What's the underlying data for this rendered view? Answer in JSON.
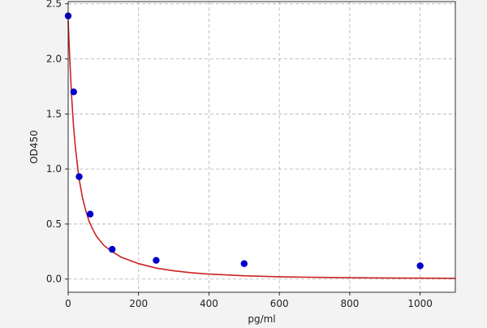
{
  "chart_data": {
    "type": "scatter",
    "title": "",
    "xlabel": "pg/ml",
    "ylabel": "OD450",
    "xlim": [
      0,
      1100
    ],
    "ylim": [
      -0.12,
      2.52
    ],
    "xticks": [
      0,
      200,
      400,
      600,
      800,
      1000
    ],
    "yticks": [
      0.0,
      0.5,
      1.0,
      1.5,
      2.0,
      2.5
    ],
    "xtick_labels": [
      "0",
      "200",
      "400",
      "600",
      "800",
      "1000"
    ],
    "ytick_labels": [
      "0.0",
      "0.5",
      "1.0",
      "1.5",
      "2.0",
      "2.5"
    ],
    "grid": true,
    "points": {
      "x": [
        0,
        15.6,
        31.2,
        62.5,
        125,
        250,
        500,
        1000
      ],
      "y": [
        2.39,
        1.7,
        0.93,
        0.59,
        0.27,
        0.17,
        0.14,
        0.12
      ],
      "color": "#0000cc"
    },
    "fit_curve": {
      "x": [
        0,
        5,
        10,
        15,
        20,
        30,
        40,
        50,
        60,
        70,
        80,
        100,
        120,
        150,
        200,
        250,
        300,
        350,
        400,
        500,
        600,
        700,
        800,
        900,
        1000,
        1100
      ],
      "y": [
        2.35,
        1.96,
        1.65,
        1.4,
        1.21,
        0.93,
        0.75,
        0.62,
        0.52,
        0.45,
        0.39,
        0.31,
        0.26,
        0.2,
        0.14,
        0.1,
        0.075,
        0.058,
        0.045,
        0.03,
        0.021,
        0.016,
        0.012,
        0.01,
        0.008,
        0.007
      ],
      "color": "#cc2222"
    },
    "background_color": "#ffffff",
    "page_color": "#f3f3f3",
    "grid_color": "#b0b0b0"
  }
}
